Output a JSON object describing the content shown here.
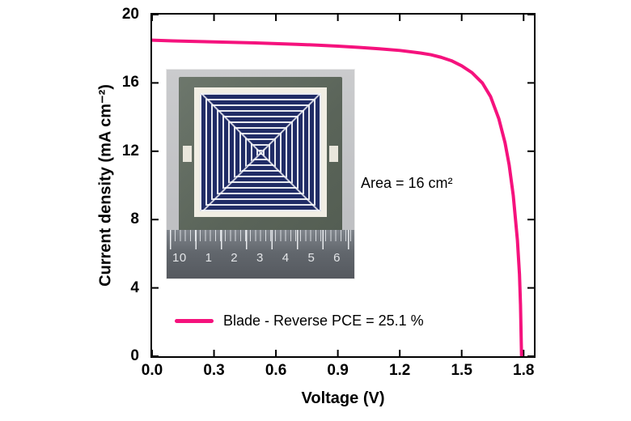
{
  "chart_data": {
    "type": "line",
    "title": "",
    "xlabel": "Voltage (V)",
    "ylabel": "Current density (mA cm⁻²)",
    "xlim": [
      0,
      1.85
    ],
    "ylim": [
      0,
      20
    ],
    "x_ticks": [
      "0.0",
      "0.3",
      "0.6",
      "0.9",
      "1.2",
      "1.5",
      "1.8"
    ],
    "x_tick_values": [
      0,
      0.3,
      0.6,
      0.9,
      1.2,
      1.5,
      1.8
    ],
    "y_ticks": [
      "0",
      "4",
      "8",
      "12",
      "16",
      "20"
    ],
    "y_tick_values": [
      0,
      4,
      8,
      12,
      16,
      20
    ],
    "grid": false,
    "legend_position": "bottom-left-inside",
    "legend_label": "Blade - Reverse PCE =  25.1 %",
    "annotation": "Area = 16 cm²",
    "series": [
      {
        "name": "Blade - Reverse",
        "color": "#f5127d",
        "x": [
          0,
          0.1,
          0.2,
          0.3,
          0.4,
          0.5,
          0.6,
          0.7,
          0.8,
          0.9,
          1.0,
          1.1,
          1.2,
          1.3,
          1.35,
          1.4,
          1.45,
          1.5,
          1.55,
          1.6,
          1.64,
          1.68,
          1.71,
          1.73,
          1.75,
          1.77,
          1.78,
          1.785,
          1.79
        ],
        "y": [
          18.5,
          18.46,
          18.43,
          18.4,
          18.37,
          18.34,
          18.3,
          18.26,
          18.21,
          18.15,
          18.08,
          18.0,
          17.9,
          17.75,
          17.65,
          17.5,
          17.3,
          17.0,
          16.6,
          16.0,
          15.2,
          13.9,
          12.5,
          11.2,
          9.4,
          6.8,
          4.8,
          3.0,
          0
        ]
      }
    ],
    "derived_metrics": {
      "jsc_mA_cm2": 18.5,
      "voc_V": 1.79,
      "pce_percent": 25.1,
      "area_cm2": 16
    }
  },
  "inset": {
    "description_name": "device-photo-on-ruler",
    "ruler_numbers": [
      "10",
      "1",
      "2",
      "3",
      "4",
      "5",
      "6"
    ],
    "colors": {
      "electrode_navy": "#202c66",
      "frame_white": "#f1eee4",
      "glass_olive": "#5e685d",
      "ruler_gray": "#62676d",
      "photo_bg": "#c5c6c8"
    }
  }
}
